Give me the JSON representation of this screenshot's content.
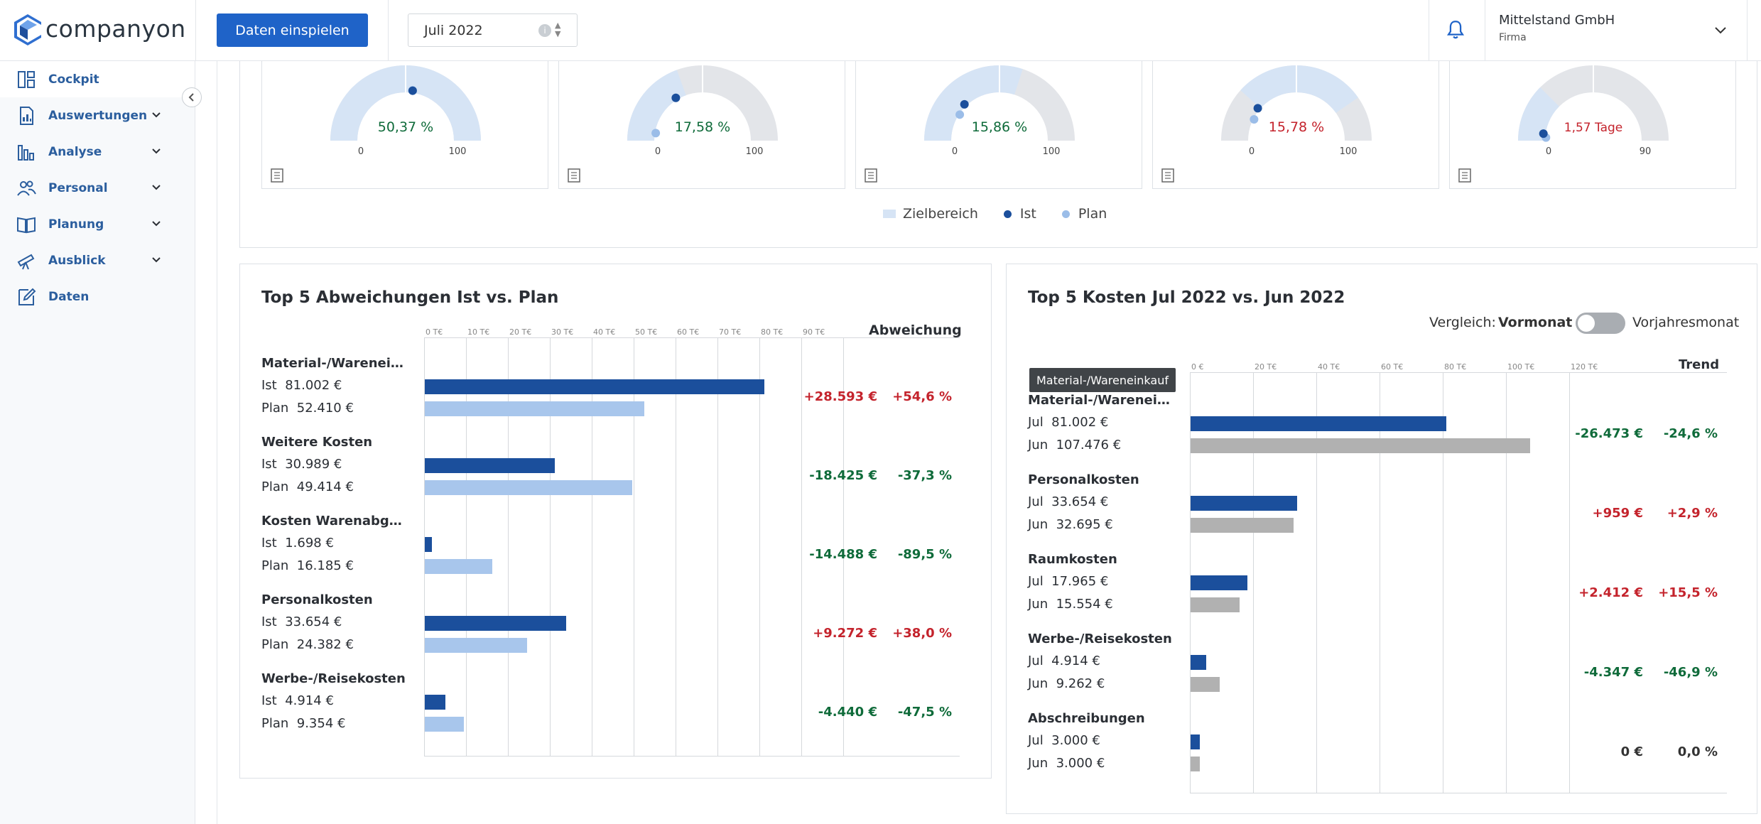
{
  "header": {
    "brand": "companyon",
    "import_button": "Daten einspielen",
    "month": "Juli 2022",
    "company_name": "Mittelstand GmbH",
    "company_type": "Firma"
  },
  "sidebar": {
    "items": [
      {
        "label": "Cockpit",
        "icon": "dashboard-icon",
        "active": true,
        "expandable": false
      },
      {
        "label": "Auswertungen",
        "icon": "report-icon",
        "active": false,
        "expandable": true
      },
      {
        "label": "Analyse",
        "icon": "bar-chart-icon",
        "active": false,
        "expandable": true
      },
      {
        "label": "Personal",
        "icon": "people-icon",
        "active": false,
        "expandable": true
      },
      {
        "label": "Planung",
        "icon": "book-icon",
        "active": false,
        "expandable": true
      },
      {
        "label": "Ausblick",
        "icon": "telescope-icon",
        "active": false,
        "expandable": true
      },
      {
        "label": "Daten",
        "icon": "edit-icon",
        "active": false,
        "expandable": false
      }
    ]
  },
  "kpi_gauges": {
    "legend": [
      "Zielbereich",
      "Ist",
      "Plan"
    ],
    "colors": {
      "target": "#d6e4f5",
      "ist": "#1b4f9c",
      "plan": "#9bbde8",
      "track": "#e3e5e9",
      "good": "#0f6b3a",
      "bad": "#c4232c"
    },
    "gauges": [
      {
        "value_label": "50,37 %",
        "min": "0",
        "max": "100",
        "status": "good"
      },
      {
        "value_label": "17,58 %",
        "min": "0",
        "max": "100",
        "status": "good"
      },
      {
        "value_label": "15,86 %",
        "min": "0",
        "max": "100",
        "status": "good"
      },
      {
        "value_label": "15,78 %",
        "min": "0",
        "max": "100",
        "status": "bad"
      },
      {
        "value_label": "1,57 Tage",
        "min": "0",
        "max": "90",
        "status": "bad"
      }
    ]
  },
  "deviations": {
    "title": "Top 5 Abweichungen Ist vs. Plan",
    "column_header": "Abweichung",
    "ticks": [
      "0 T€",
      "10 T€",
      "20 T€",
      "30 T€",
      "40 T€",
      "50 T€",
      "60 T€",
      "70 T€",
      "80 T€",
      "90 T€"
    ],
    "rows": [
      {
        "title": "Material-/Warenei…",
        "ist_label": "Ist",
        "ist_value": "81.002 €",
        "plan_label": "Plan",
        "plan_value": "52.410 €",
        "abs": "+28.593 €",
        "pct": "+54,6 %",
        "status": "bad"
      },
      {
        "title": "Weitere Kosten",
        "ist_label": "Ist",
        "ist_value": "30.989 €",
        "plan_label": "Plan",
        "plan_value": "49.414 €",
        "abs": "-18.425 €",
        "pct": "-37,3 %",
        "status": "good"
      },
      {
        "title": "Kosten Warenabg…",
        "ist_label": "Ist",
        "ist_value": "1.698 €",
        "plan_label": "Plan",
        "plan_value": "16.185 €",
        "abs": "-14.488 €",
        "pct": "-89,5 %",
        "status": "good"
      },
      {
        "title": "Personalkosten",
        "ist_label": "Ist",
        "ist_value": "33.654 €",
        "plan_label": "Plan",
        "plan_value": "24.382 €",
        "abs": "+9.272 €",
        "pct": "+38,0 %",
        "status": "bad"
      },
      {
        "title": "Werbe-/Reisekosten",
        "ist_label": "Ist",
        "ist_value": "4.914 €",
        "plan_label": "Plan",
        "plan_value": "9.354 €",
        "abs": "-4.440 €",
        "pct": "-47,5 %",
        "status": "good"
      }
    ]
  },
  "top_costs": {
    "title": "Top 5 Kosten Jul 2022 vs. Jun 2022",
    "compare_label": "Vergleich:",
    "compare_option_a": "Vormonat",
    "compare_option_b": "Vorjahresmonat",
    "column_header": "Trend",
    "tooltip": "Material-/Wareneinkauf",
    "ticks": [
      "0 €",
      "20 T€",
      "40 T€",
      "60 T€",
      "80 T€",
      "100 T€",
      "120 T€"
    ],
    "rows": [
      {
        "title": "Material-/Warenei…",
        "cur_label": "Jul",
        "cur_value": "81.002 €",
        "prev_label": "Jun",
        "prev_value": "107.476 €",
        "abs": "-26.473 €",
        "pct": "-24,6 %",
        "status": "good"
      },
      {
        "title": "Personalkosten",
        "cur_label": "Jul",
        "cur_value": "33.654 €",
        "prev_label": "Jun",
        "prev_value": "32.695 €",
        "abs": "+959 €",
        "pct": "+2,9 %",
        "status": "bad"
      },
      {
        "title": "Raumkosten",
        "cur_label": "Jul",
        "cur_value": "17.965 €",
        "prev_label": "Jun",
        "prev_value": "15.554 €",
        "abs": "+2.412 €",
        "pct": "+15,5 %",
        "status": "bad"
      },
      {
        "title": "Werbe-/Reisekosten",
        "cur_label": "Jul",
        "cur_value": "4.914 €",
        "prev_label": "Jun",
        "prev_value": "9.262 €",
        "abs": "-4.347 €",
        "pct": "-46,9 %",
        "status": "good"
      },
      {
        "title": "Abschreibungen",
        "cur_label": "Jul",
        "cur_value": "3.000 €",
        "prev_label": "Jun",
        "prev_value": "3.000 €",
        "abs": "0 €",
        "pct": "0,0 %",
        "status": "neutral"
      }
    ]
  },
  "chart_data": [
    {
      "type": "bar",
      "title": "Top 5 Abweichungen Ist vs. Plan",
      "orientation": "horizontal",
      "categories": [
        "Material-/Warenei…",
        "Weitere Kosten",
        "Kosten Warenabg…",
        "Personalkosten",
        "Werbe-/Reisekosten"
      ],
      "series": [
        {
          "name": "Ist",
          "values": [
            81002,
            30989,
            1698,
            33654,
            4914
          ],
          "color": "#1b4f9c"
        },
        {
          "name": "Plan",
          "values": [
            52410,
            49414,
            16185,
            24382,
            9354
          ],
          "color": "#a8c6ec"
        }
      ],
      "xlim": [
        0,
        100000
      ],
      "grid": true
    },
    {
      "type": "bar",
      "title": "Top 5 Kosten Jul 2022 vs. Jun 2022",
      "orientation": "horizontal",
      "categories": [
        "Material-/Warenei…",
        "Personalkosten",
        "Raumkosten",
        "Werbe-/Reisekosten",
        "Abschreibungen"
      ],
      "series": [
        {
          "name": "Jul",
          "values": [
            81002,
            33654,
            17965,
            4914,
            3000
          ],
          "color": "#1b4f9c"
        },
        {
          "name": "Jun",
          "values": [
            107476,
            32695,
            15554,
            9262,
            3000
          ],
          "color": "#b1b1b1"
        }
      ],
      "xlim": [
        0,
        140000
      ],
      "grid": true
    }
  ]
}
